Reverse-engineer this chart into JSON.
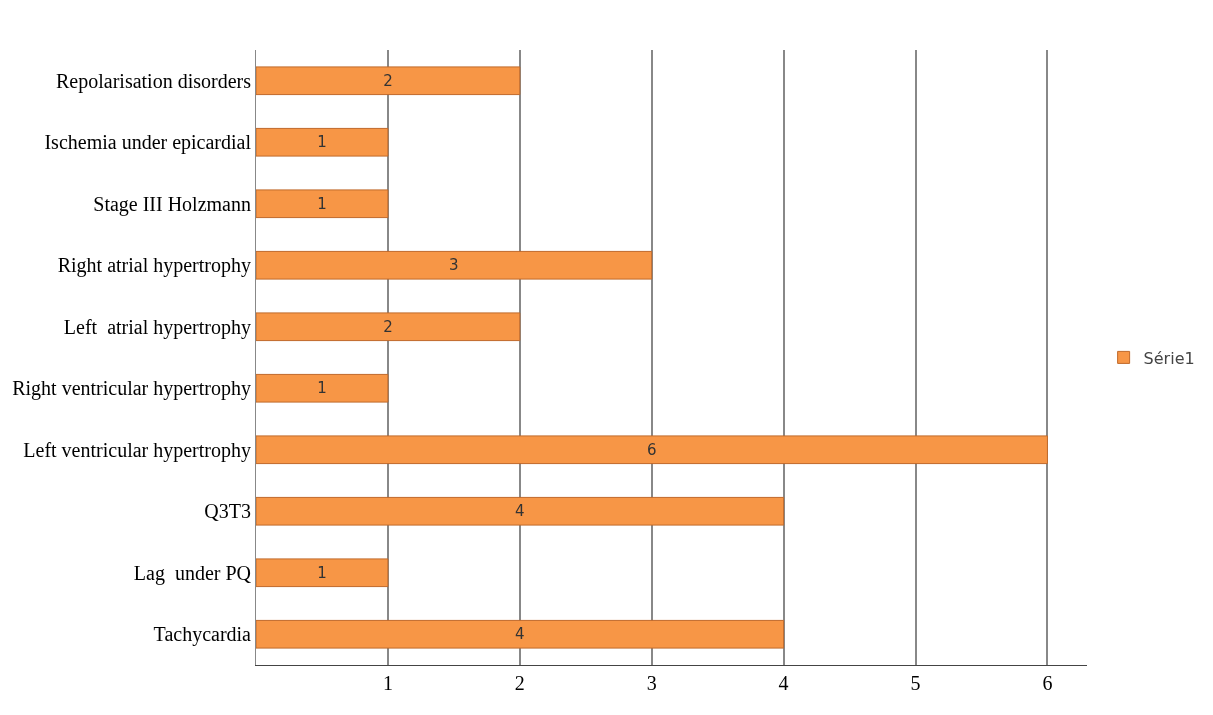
{
  "chart_data": {
    "type": "bar",
    "orientation": "horizontal",
    "categories": [
      "Repolarisation disorders",
      "Ischemia under epicardial",
      "Stage III Holzmann",
      "Right atrial hypertrophy",
      "Left  atrial hypertrophy",
      "Right ventricular hypertrophy",
      "Left ventricular hypertrophy",
      "Q3T3",
      "Lag  under PQ",
      "Tachycardia"
    ],
    "series": [
      {
        "name": "Série1",
        "color": "#f79646",
        "values": [
          2,
          1,
          1,
          3,
          2,
          1,
          6,
          4,
          1,
          4
        ]
      }
    ],
    "xlim": [
      0,
      6.3
    ],
    "xticks": [
      {
        "value": 0,
        "label": null
      },
      1,
      2,
      3,
      4,
      5,
      6
    ],
    "grid": "x",
    "legend": "right",
    "data_labels": true
  }
}
